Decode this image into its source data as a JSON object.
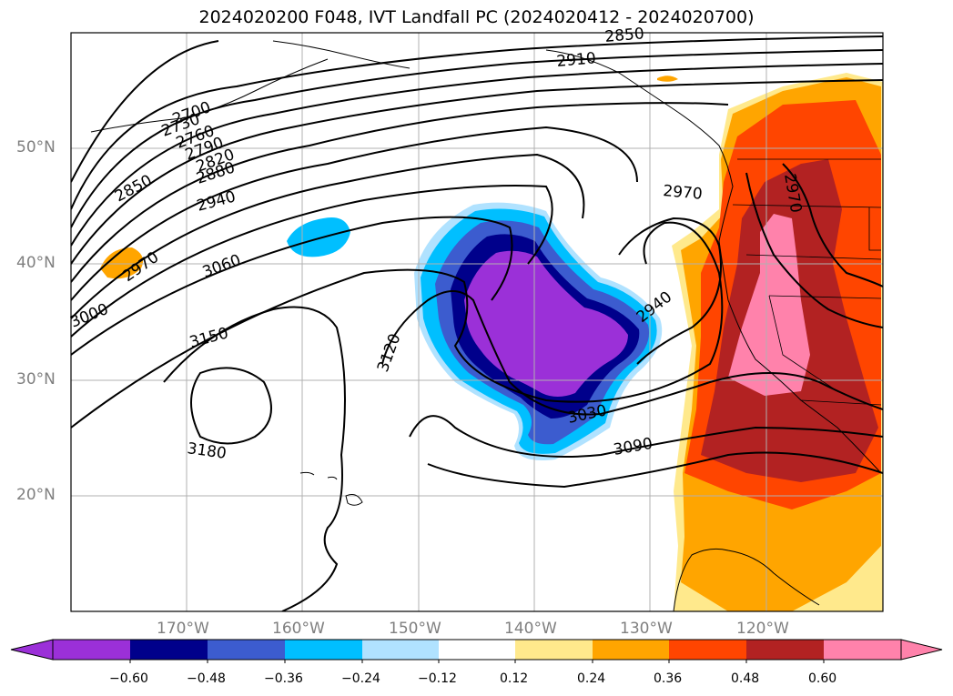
{
  "title": "2024020200 F048, IVT Landfall PC (2024020412 - 2024020700)",
  "lat_labels": [
    "50°N",
    "40°N",
    "30°N",
    "20°N"
  ],
  "lon_labels": [
    "170°W",
    "160°W",
    "150°W",
    "140°W",
    "130°W",
    "120°W"
  ],
  "contour_labels": [
    "2700",
    "2730",
    "2760",
    "2790",
    "2820",
    "2850",
    "2880",
    "2940",
    "2970",
    "3000",
    "3060",
    "3150",
    "3180",
    "3120",
    "3030",
    "3090",
    "2970",
    "2940",
    "2850",
    "2910",
    "2970"
  ],
  "colorbar": {
    "ticks": [
      "−0.60",
      "−0.48",
      "−0.36",
      "−0.24",
      "−0.12",
      "0.12",
      "0.24",
      "0.36",
      "0.48",
      "0.60"
    ],
    "colors": [
      "#9b30d8",
      "#00008b",
      "#3c5ccf",
      "#00bfff",
      "#b0e2ff",
      "#ffffff",
      "#ffe98c",
      "#ffa500",
      "#ff4500",
      "#b22222",
      "#ff82ab"
    ]
  }
}
